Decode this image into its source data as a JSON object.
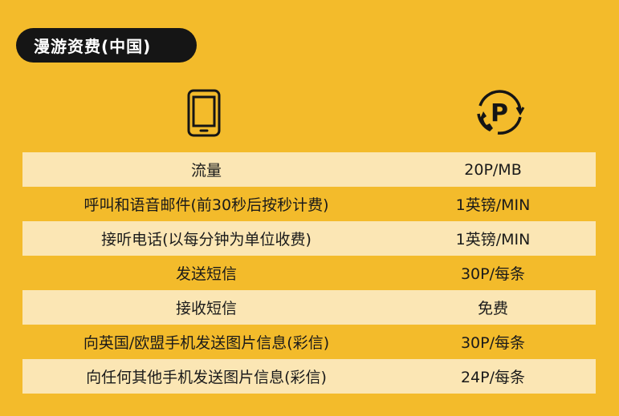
{
  "header": {
    "title": "漫游资费(中国)"
  },
  "icons": {
    "left": "mobile-phone-icon",
    "right": "roaming-charge-icon",
    "right_glyph": "P"
  },
  "colors": {
    "background": "#f3bb2b",
    "row_shade": "#fbe6b4",
    "pill": "#151515"
  },
  "rates": [
    {
      "label": "流量",
      "value": "20P/MB"
    },
    {
      "label": "呼叫和语音邮件(前30秒后按秒计费)",
      "value": "1英镑/MIN"
    },
    {
      "label": "接听电话(以每分钟为单位收费)",
      "value": "1英镑/MIN"
    },
    {
      "label": "发送短信",
      "value": "30P/每条"
    },
    {
      "label": "接收短信",
      "value": "免费"
    },
    {
      "label": "向英国/欧盟手机发送图片信息(彩信)",
      "value": "30P/每条"
    },
    {
      "label": "向任何其他手机发送图片信息(彩信)",
      "value": "24P/每条"
    }
  ]
}
